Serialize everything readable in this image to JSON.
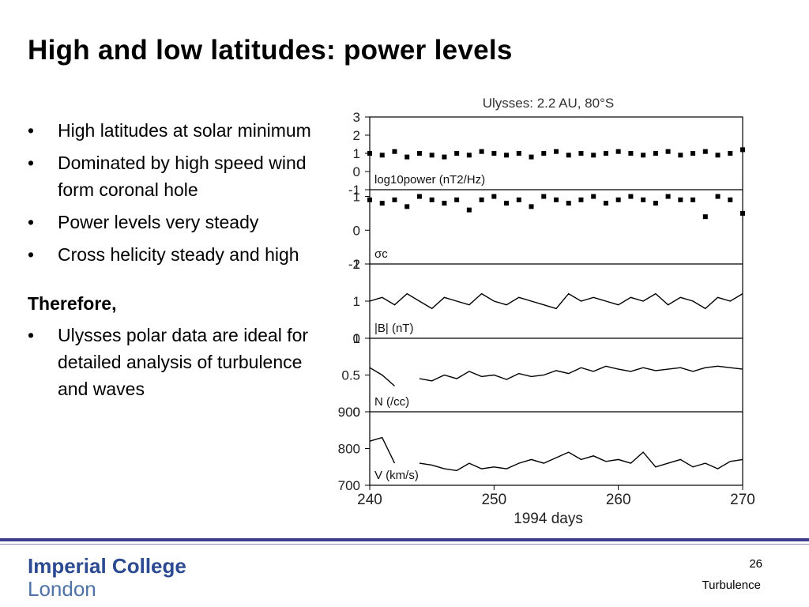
{
  "slide": {
    "title": "High and low latitudes: power levels",
    "bullets": [
      "High latitudes at solar minimum",
      "Dominated by high speed wind form coronal hole",
      "Power levels very steady",
      "Cross helicity steady and high"
    ],
    "therefore_heading": "Therefore,",
    "therefore_bullets": [
      "Ulysses polar data are ideal for detailed analysis of turbulence and waves"
    ],
    "bullet_glyph": "•",
    "page_number": "26",
    "footer_label": "Turbulence",
    "logo_line1": "Imperial College",
    "logo_line2": "London",
    "colors": {
      "footer_bar": "#3d3d8f",
      "logo": "#2b4a91"
    }
  },
  "chart_data": {
    "type": "line",
    "title": "Ulysses: 2.2 AU, 80°S",
    "xlabel": "1994 days",
    "xlim": [
      240,
      270
    ],
    "xticks": [
      240,
      250,
      260,
      270
    ],
    "panels": [
      {
        "label": "log10power (nT2/Hz)",
        "ylim": [
          -1,
          3
        ],
        "yticks": [
          "3",
          "2",
          "1",
          "0",
          "-1"
        ],
        "style": "scatter",
        "x": [
          240,
          241,
          242,
          243,
          244,
          245,
          246,
          247,
          248,
          249,
          250,
          251,
          252,
          253,
          254,
          255,
          256,
          257,
          258,
          259,
          260,
          261,
          262,
          263,
          264,
          265,
          266,
          267,
          268,
          269,
          270
        ],
        "y": [
          1.0,
          0.9,
          1.1,
          0.8,
          1.0,
          0.9,
          0.8,
          1.0,
          0.9,
          1.1,
          1.0,
          0.9,
          1.0,
          0.8,
          1.0,
          1.1,
          0.9,
          1.0,
          0.9,
          1.0,
          1.1,
          1.0,
          0.9,
          1.0,
          1.1,
          0.9,
          1.0,
          1.1,
          0.9,
          1.0,
          1.2
        ]
      },
      {
        "label": "σc",
        "ylim": [
          -1,
          1.2
        ],
        "yticks": [
          "1",
          "0",
          "-1"
        ],
        "style": "scatter",
        "x": [
          240,
          241,
          242,
          243,
          244,
          245,
          246,
          247,
          248,
          249,
          250,
          251,
          252,
          253,
          254,
          255,
          256,
          257,
          258,
          259,
          260,
          261,
          262,
          263,
          264,
          265,
          266,
          267,
          268,
          269,
          270
        ],
        "y": [
          0.9,
          0.8,
          0.9,
          0.7,
          1.0,
          0.9,
          0.8,
          0.9,
          0.6,
          0.9,
          1.0,
          0.8,
          0.9,
          0.7,
          1.0,
          0.9,
          0.8,
          0.9,
          1.0,
          0.8,
          0.9,
          1.0,
          0.9,
          0.8,
          1.0,
          0.9,
          0.9,
          0.4,
          1.0,
          0.9,
          0.5
        ]
      },
      {
        "label": "|B| (nT)",
        "ylim": [
          0,
          2
        ],
        "yticks": [
          "2",
          "1",
          "0"
        ],
        "style": "line",
        "x": [
          240,
          241,
          242,
          243,
          244,
          245,
          246,
          247,
          248,
          249,
          250,
          251,
          252,
          253,
          254,
          255,
          256,
          257,
          258,
          259,
          260,
          261,
          262,
          263,
          264,
          265,
          266,
          267,
          268,
          269,
          270
        ],
        "y": [
          1.0,
          1.1,
          0.9,
          1.2,
          1.0,
          0.8,
          1.1,
          1.0,
          0.9,
          1.2,
          1.0,
          0.9,
          1.1,
          1.0,
          0.9,
          0.8,
          1.2,
          1.0,
          1.1,
          1.0,
          0.9,
          1.1,
          1.0,
          1.2,
          0.9,
          1.1,
          1.0,
          0.8,
          1.1,
          1.0,
          1.2
        ]
      },
      {
        "label": "N (/cc)",
        "ylim": [
          0,
          1
        ],
        "yticks": [
          "1",
          "0.5",
          "0"
        ],
        "style": "line",
        "x": [
          240,
          241,
          242,
          243,
          244,
          245,
          246,
          247,
          248,
          249,
          250,
          251,
          252,
          253,
          254,
          255,
          256,
          257,
          258,
          259,
          260,
          261,
          262,
          263,
          264,
          265,
          266,
          267,
          268,
          269,
          270
        ],
        "y": [
          0.6,
          0.5,
          0.35,
          null,
          0.45,
          0.42,
          0.5,
          0.45,
          0.55,
          0.48,
          0.5,
          0.44,
          0.52,
          0.48,
          0.5,
          0.56,
          0.52,
          0.6,
          0.55,
          0.62,
          0.58,
          0.55,
          0.6,
          0.56,
          0.58,
          0.6,
          0.55,
          0.6,
          0.62,
          0.6,
          0.58
        ]
      },
      {
        "label": "V (km/s)",
        "ylim": [
          700,
          900
        ],
        "yticks": [
          "900",
          "800",
          "700"
        ],
        "style": "line",
        "x": [
          240,
          241,
          242,
          243,
          244,
          245,
          246,
          247,
          248,
          249,
          250,
          251,
          252,
          253,
          254,
          255,
          256,
          257,
          258,
          259,
          260,
          261,
          262,
          263,
          264,
          265,
          266,
          267,
          268,
          269,
          270
        ],
        "y": [
          820,
          830,
          760,
          null,
          760,
          755,
          745,
          740,
          760,
          745,
          750,
          745,
          760,
          770,
          760,
          775,
          790,
          770,
          780,
          765,
          770,
          760,
          790,
          750,
          760,
          770,
          750,
          760,
          745,
          765,
          770
        ]
      }
    ]
  }
}
